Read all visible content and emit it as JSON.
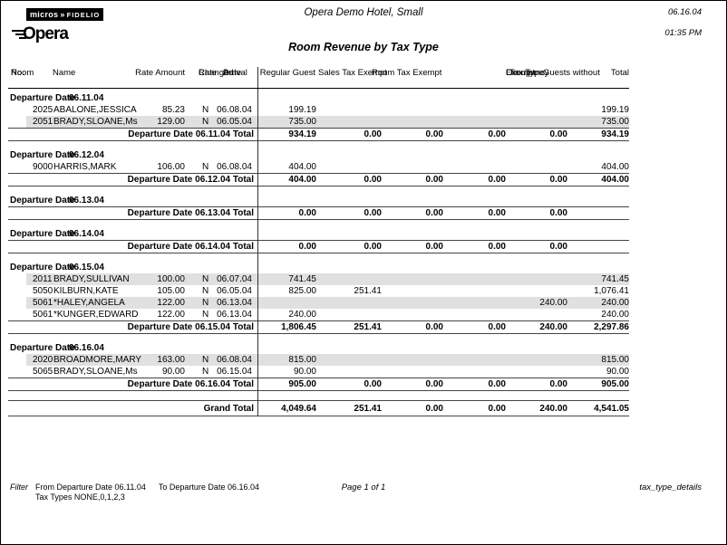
{
  "header": {
    "logo_micros": "micros",
    "logo_arrow": "»",
    "logo_fidelio": "FIDELIO",
    "logo_opera": "Opera",
    "hotel_name": "Opera Demo Hotel, Small",
    "print_date": "06.16.04",
    "print_time": "01:35 PM",
    "report_title": "Room Revenue by Tax Type"
  },
  "labels": {
    "departure_date": "Departure Date"
  },
  "columns": {
    "room": [
      "Room",
      "No."
    ],
    "name": "Name",
    "rate_amount": "Rate Amount",
    "rate_changed": [
      "Rate",
      "Changed"
    ],
    "arrival": [
      "Arrival",
      "Date"
    ],
    "regular_guest": "Regular Guest",
    "sales_tax_exempt": "Sales Tax Exempt",
    "room_tax_exempt": "Room Tax Exempt",
    "occupancy_exempt": [
      "Occupancy",
      "Exempt"
    ],
    "guests_without": [
      "Guests without",
      "Tax Type"
    ],
    "total": "Total"
  },
  "sections": [
    {
      "date": "06.11.04",
      "rows": [
        {
          "room": "2025",
          "name": "ABALONE,JESSICA",
          "rate": "85.23",
          "chg": "N",
          "arr": "06.08.04",
          "reg": "199.19",
          "total": "199.19",
          "shaded": false
        },
        {
          "room": "2051",
          "name": "BRADY,SLOANE,Ms",
          "rate": "129.00",
          "chg": "N",
          "arr": "06.05.04",
          "reg": "735.00",
          "total": "735.00",
          "shaded": true
        }
      ],
      "total": {
        "label": "Departure Date 06.11.04 Total",
        "reg": "934.19",
        "sales": "0.00",
        "roomx": "0.00",
        "occ": "0.00",
        "guests": "0.00",
        "total": "934.19"
      }
    },
    {
      "date": "06.12.04",
      "rows": [
        {
          "room": "9000",
          "name": "HARRIS,MARK",
          "rate": "106.00",
          "chg": "N",
          "arr": "06.08.04",
          "reg": "404.00",
          "total": "404.00",
          "shaded": false
        }
      ],
      "total": {
        "label": "Departure Date 06.12.04 Total",
        "reg": "404.00",
        "sales": "0.00",
        "roomx": "0.00",
        "occ": "0.00",
        "guests": "0.00",
        "total": "404.00"
      }
    },
    {
      "date": "06.13.04",
      "rows": [],
      "total": {
        "label": "Departure Date 06.13.04 Total",
        "reg": "0.00",
        "sales": "0.00",
        "roomx": "0.00",
        "occ": "0.00",
        "guests": "0.00",
        "total": ""
      }
    },
    {
      "date": "06.14.04",
      "rows": [],
      "total": {
        "label": "Departure Date 06.14.04 Total",
        "reg": "0.00",
        "sales": "0.00",
        "roomx": "0.00",
        "occ": "0.00",
        "guests": "0.00",
        "total": ""
      }
    },
    {
      "date": "06.15.04",
      "rows": [
        {
          "room": "2011",
          "name": "BRADY,SULLIVAN",
          "rate": "100.00",
          "chg": "N",
          "arr": "06.07.04",
          "reg": "741.45",
          "total": "741.45",
          "shaded": true
        },
        {
          "room": "5050",
          "name": "KILBURN,KATE",
          "rate": "105.00",
          "chg": "N",
          "arr": "06.05.04",
          "reg": "825.00",
          "sales": "251.41",
          "total": "1,076.41",
          "shaded": false
        },
        {
          "room": "5061",
          "name": "*HALEY,ANGELA",
          "rate": "122.00",
          "chg": "N",
          "arr": "06.13.04",
          "guests": "240.00",
          "total": "240.00",
          "shaded": true
        },
        {
          "room": "5061",
          "name": "*KUNGER,EDWARD",
          "rate": "122.00",
          "chg": "N",
          "arr": "06.13.04",
          "reg": "240.00",
          "total": "240.00",
          "shaded": false
        }
      ],
      "total": {
        "label": "Departure Date 06.15.04 Total",
        "reg": "1,806.45",
        "sales": "251.41",
        "roomx": "0.00",
        "occ": "0.00",
        "guests": "240.00",
        "total": "2,297.86"
      }
    },
    {
      "date": "06.16.04",
      "rows": [
        {
          "room": "2020",
          "name": "BROADMORE,MARY",
          "rate": "163.00",
          "chg": "N",
          "arr": "06.08.04",
          "reg": "815.00",
          "total": "815.00",
          "shaded": true
        },
        {
          "room": "5065",
          "name": "BRADY,SLOANE,Ms",
          "rate": "90.00",
          "chg": "N",
          "arr": "06.15.04",
          "reg": "90.00",
          "total": "90.00",
          "shaded": false
        }
      ],
      "total": {
        "label": "Departure Date 06.16.04 Total",
        "reg": "905.00",
        "sales": "0.00",
        "roomx": "0.00",
        "occ": "0.00",
        "guests": "0.00",
        "total": "905.00"
      }
    }
  ],
  "grand_total": {
    "label": "Grand Total",
    "reg": "4,049.64",
    "sales": "251.41",
    "roomx": "0.00",
    "occ": "0.00",
    "guests": "240.00",
    "total": "4,541.05"
  },
  "footer": {
    "filter_label": "Filter",
    "filter_from": "From Departure Date 06.11.04",
    "filter_to": "To Departure Date 06.16.04",
    "filter_line2": "Tax Types NONE,0,1,2,3",
    "page_label": "Page 1 of 1",
    "report_file": "tax_type_details"
  }
}
